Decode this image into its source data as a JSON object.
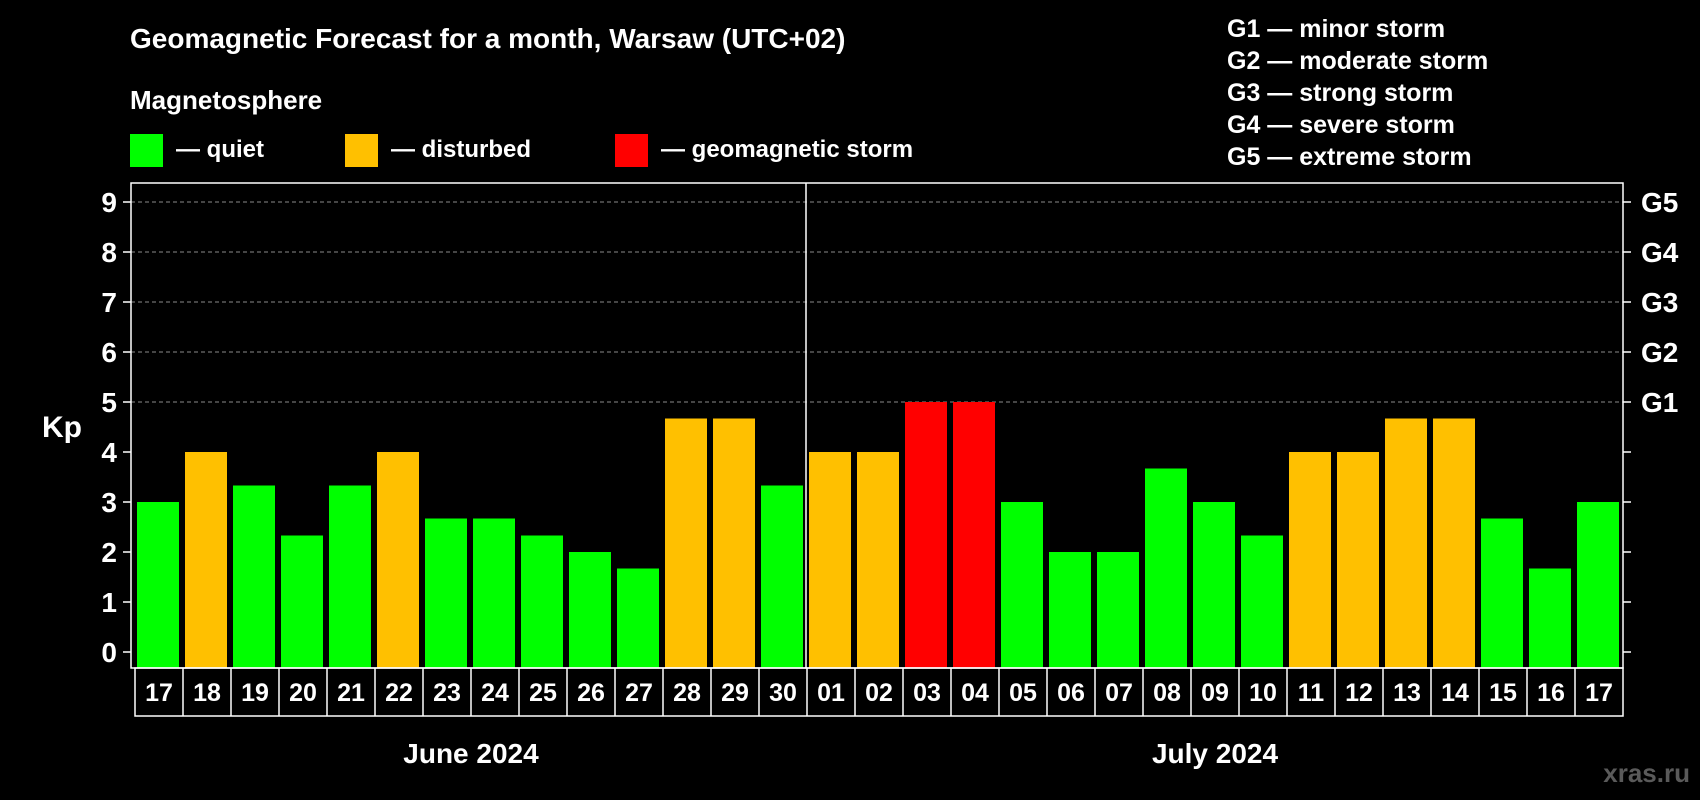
{
  "title": "Geomagnetic Forecast for a month, Warsaw (UTC+02)",
  "legend": {
    "heading": "Magnetosphere",
    "items": [
      {
        "label": "— quiet",
        "color": "#00ff00"
      },
      {
        "label": "— disturbed",
        "color": "#ffc000"
      },
      {
        "label": "— geomagnetic storm",
        "color": "#ff0000"
      }
    ]
  },
  "storm_scale": [
    "G1 — minor storm",
    "G2 — moderate storm",
    "G3 — strong storm",
    "G4 — severe storm",
    "G5 — extreme storm"
  ],
  "watermark": "xras.ru",
  "chart_data": {
    "type": "bar",
    "title": "Geomagnetic Forecast for a month, Warsaw (UTC+02)",
    "ylabel": "Kp",
    "ylim": [
      0,
      9
    ],
    "yticks": [
      0,
      1,
      2,
      3,
      4,
      5,
      6,
      7,
      8,
      9
    ],
    "right_axis_labels": [
      {
        "kp": 5,
        "label": "G1"
      },
      {
        "kp": 6,
        "label": "G2"
      },
      {
        "kp": 7,
        "label": "G3"
      },
      {
        "kp": 8,
        "label": "G4"
      },
      {
        "kp": 9,
        "label": "G5"
      }
    ],
    "grid": "dashed horizontal at Kp 5-9",
    "months": [
      {
        "label": "June 2024",
        "first_index": 0,
        "last_index": 13
      },
      {
        "label": "July 2024",
        "first_index": 14,
        "last_index": 30
      }
    ],
    "categories": [
      "17",
      "18",
      "19",
      "20",
      "21",
      "22",
      "23",
      "24",
      "25",
      "26",
      "27",
      "28",
      "29",
      "30",
      "01",
      "02",
      "03",
      "04",
      "05",
      "06",
      "07",
      "08",
      "09",
      "10",
      "11",
      "12",
      "13",
      "14",
      "15",
      "16",
      "17"
    ],
    "values": [
      3.0,
      4.0,
      3.33,
      2.33,
      3.33,
      4.0,
      2.67,
      2.67,
      2.33,
      2.0,
      1.67,
      4.67,
      4.67,
      3.33,
      4.0,
      4.0,
      5.0,
      5.0,
      3.0,
      2.0,
      2.0,
      3.67,
      3.0,
      2.33,
      4.0,
      4.0,
      4.67,
      4.67,
      2.67,
      1.67,
      3.0
    ],
    "status": [
      "quiet",
      "disturbed",
      "quiet",
      "quiet",
      "quiet",
      "disturbed",
      "quiet",
      "quiet",
      "quiet",
      "quiet",
      "quiet",
      "disturbed",
      "disturbed",
      "quiet",
      "disturbed",
      "disturbed",
      "storm",
      "storm",
      "quiet",
      "quiet",
      "quiet",
      "quiet",
      "quiet",
      "quiet",
      "disturbed",
      "disturbed",
      "disturbed",
      "disturbed",
      "quiet",
      "quiet",
      "quiet"
    ],
    "status_colors": {
      "quiet": "#00ff00",
      "disturbed": "#ffc000",
      "storm": "#ff0000"
    }
  }
}
